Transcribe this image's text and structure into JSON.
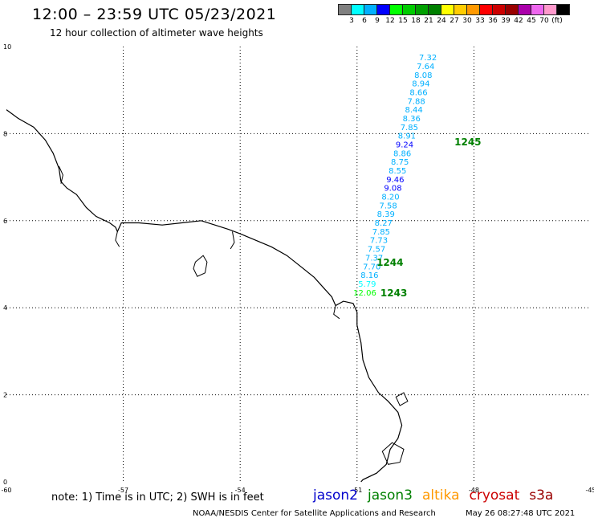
{
  "header": {
    "title": "12:00 – 23:59 UTC 05/23/2021",
    "subtitle": "12 hour collection of altimeter wave heights"
  },
  "legend": {
    "colors": [
      "#808080",
      "#00ffff",
      "#00b0ff",
      "#0000ff",
      "#00ff00",
      "#00cc00",
      "#00a000",
      "#008000",
      "#ffff00",
      "#ffcc00",
      "#ff9900",
      "#ff0000",
      "#cc0000",
      "#990000",
      "#aa00aa",
      "#ee66ee",
      "#ff99cc",
      "#000000"
    ],
    "labels": [
      "3",
      "6",
      "9",
      "12",
      "15",
      "18",
      "21",
      "24",
      "27",
      "30",
      "33",
      "36",
      "39",
      "42",
      "45",
      "70",
      "(ft)"
    ]
  },
  "map": {
    "lon_range": [
      -60,
      -45
    ],
    "lat_range": [
      0,
      10
    ],
    "x_ticks": [
      -60,
      -57,
      -54,
      -51,
      -48,
      -45
    ],
    "y_ticks": [
      0,
      2,
      4,
      6,
      8,
      10
    ],
    "x_tick_labels": [
      "-60",
      "-57",
      "-54",
      "-51",
      "-48",
      "-45"
    ],
    "y_tick_labels": [
      "0",
      "2",
      "4",
      "6",
      "8",
      "10"
    ],
    "land_color": "#000000"
  },
  "track": {
    "satellite": "jason3",
    "points": [
      {
        "lon": -49.18,
        "lat": 9.74,
        "v": "7.32"
      },
      {
        "lon": -49.24,
        "lat": 9.54,
        "v": "7.64"
      },
      {
        "lon": -49.3,
        "lat": 9.34,
        "v": "8.08"
      },
      {
        "lon": -49.36,
        "lat": 9.14,
        "v": "8.94"
      },
      {
        "lon": -49.42,
        "lat": 8.94,
        "v": "8.66"
      },
      {
        "lon": -49.48,
        "lat": 8.74,
        "v": "7.88"
      },
      {
        "lon": -49.54,
        "lat": 8.54,
        "v": "8.44"
      },
      {
        "lon": -49.6,
        "lat": 8.34,
        "v": "8.36"
      },
      {
        "lon": -49.66,
        "lat": 8.14,
        "v": "7.85"
      },
      {
        "lon": -49.72,
        "lat": 7.94,
        "v": "8.91"
      },
      {
        "lon": -49.78,
        "lat": 7.74,
        "v": "9.24"
      },
      {
        "lon": -49.84,
        "lat": 7.54,
        "v": "8.86"
      },
      {
        "lon": -49.9,
        "lat": 7.34,
        "v": "8.75"
      },
      {
        "lon": -49.96,
        "lat": 7.14,
        "v": "8.55"
      },
      {
        "lon": -50.02,
        "lat": 6.94,
        "v": "9.46"
      },
      {
        "lon": -50.08,
        "lat": 6.74,
        "v": "9.08"
      },
      {
        "lon": -50.14,
        "lat": 6.54,
        "v": "8.20"
      },
      {
        "lon": -50.2,
        "lat": 6.34,
        "v": "7.58"
      },
      {
        "lon": -50.26,
        "lat": 6.14,
        "v": "8.39"
      },
      {
        "lon": -50.32,
        "lat": 5.94,
        "v": "8.27"
      },
      {
        "lon": -50.38,
        "lat": 5.74,
        "v": "7.85"
      },
      {
        "lon": -50.44,
        "lat": 5.54,
        "v": "7.73"
      },
      {
        "lon": -50.5,
        "lat": 5.34,
        "v": "7.57"
      },
      {
        "lon": -50.56,
        "lat": 5.14,
        "v": "7.37"
      },
      {
        "lon": -50.62,
        "lat": 4.94,
        "v": "7.70"
      },
      {
        "lon": -50.68,
        "lat": 4.74,
        "v": "8.16"
      },
      {
        "lon": -50.74,
        "lat": 4.54,
        "v": "5.79"
      },
      {
        "lon": -50.8,
        "lat": 4.34,
        "v": "12.06"
      }
    ],
    "time_labels": [
      {
        "lon": -48.5,
        "lat": 7.8,
        "t": "1245"
      },
      {
        "lon": -50.5,
        "lat": 5.04,
        "t": "1244"
      },
      {
        "lon": -50.4,
        "lat": 4.34,
        "t": "1243"
      }
    ]
  },
  "footer": {
    "note": "note: 1) Time is in UTC; 2) SWH is in feet",
    "satellites": [
      {
        "name": "jason2",
        "color": "#0000cc"
      },
      {
        "name": "jason3",
        "color": "#008000"
      },
      {
        "name": "altika",
        "color": "#ff9900"
      },
      {
        "name": "cryosat",
        "color": "#cc0000"
      },
      {
        "name": "s3a",
        "color": "#990000"
      }
    ],
    "credit": "NOAA/NESDIS Center for Satellite Applications and Research",
    "timestamp": "May 26 08:27:48 UTC 2021"
  }
}
